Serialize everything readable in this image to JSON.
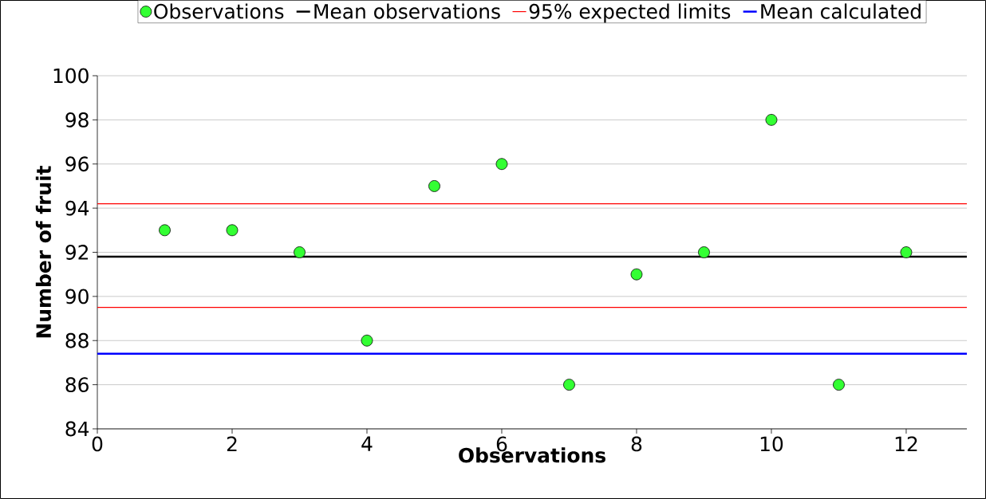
{
  "chart_data": {
    "type": "scatter",
    "xlabel": "Observations",
    "ylabel": "Number of fruit",
    "series": [
      {
        "name": "Observations",
        "color": "#33ff33",
        "x": [
          1,
          2,
          3,
          4,
          5,
          6,
          7,
          8,
          9,
          10,
          11,
          12
        ],
        "values": [
          93,
          93,
          92,
          88,
          95,
          96,
          86,
          91,
          92,
          98,
          86,
          92
        ]
      }
    ],
    "ref_lines": [
      {
        "axis": "y",
        "value": 91.8,
        "label": "Mean observations",
        "color": "#000000"
      },
      {
        "axis": "y",
        "value": 94.2,
        "label": "95% expected limits",
        "color": "#ff0000"
      },
      {
        "axis": "y",
        "value": 89.5,
        "color": "#ff0000"
      },
      {
        "axis": "y",
        "value": 87.4,
        "label": "Mean calculated",
        "color": "#0000ff"
      }
    ],
    "xlim": [
      0,
      12.9
    ],
    "ylim": [
      84,
      100
    ],
    "xticks": [
      0,
      2,
      4,
      6,
      8,
      10,
      12
    ],
    "yticks": [
      84,
      86,
      88,
      90,
      92,
      94,
      96,
      98,
      100
    ],
    "grid": "y",
    "marker": "circle",
    "legend": "top"
  }
}
